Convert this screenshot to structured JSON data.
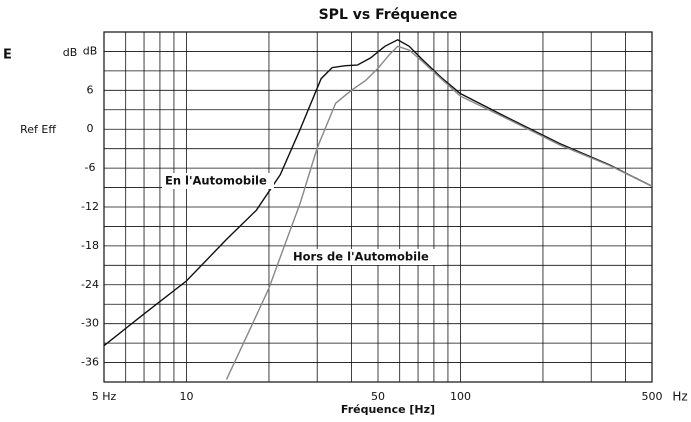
{
  "chart_data": {
    "type": "line",
    "title": "SPL vs Fréquence",
    "xlabel": "Fréquence [Hz]",
    "x_unit": "Hz",
    "y_unit": "dB",
    "side_labels": [
      "E",
      "Ref Eff"
    ],
    "xscale": "log",
    "xlim": [
      5,
      500
    ],
    "ylim": [
      -39,
      15
    ],
    "xticks": [
      {
        "value": 5,
        "label": "5 Hz"
      },
      10,
      50,
      100,
      500
    ],
    "xgrid": [
      6,
      7,
      8,
      9,
      20,
      30,
      40,
      60,
      70,
      80,
      90,
      200,
      300,
      400
    ],
    "yticks": [
      {
        "value": 12,
        "label": "dB"
      },
      6,
      0,
      -6,
      -12,
      -18,
      -24,
      -30,
      -36
    ],
    "ygrid": [
      15,
      9,
      3,
      -3,
      -9,
      -15,
      -21,
      -27,
      -33,
      -39
    ],
    "grid": true,
    "series": [
      {
        "name": "En l'Automobile",
        "color": "#111111",
        "x": [
          5,
          7,
          10,
          14,
          18,
          22,
          26,
          31,
          34,
          38,
          42,
          47,
          53,
          59,
          65,
          72,
          85,
          100,
          150,
          230,
          350,
          500
        ],
        "values": [
          -33.4,
          -28.5,
          -23.4,
          -17,
          -12.5,
          -7,
          0,
          7.8,
          9.5,
          9.8,
          9.9,
          11,
          12.8,
          13.8,
          12.8,
          10.9,
          8,
          5.5,
          1.7,
          -2.2,
          -5.5,
          -8.8
        ]
      },
      {
        "name": "Hors de l'Automobile",
        "color": "#888888",
        "x": [
          14,
          17,
          20,
          23,
          26,
          30,
          35,
          40,
          45,
          50,
          55,
          59,
          65,
          72,
          85,
          100,
          150,
          230,
          350,
          500
        ],
        "values": [
          -38.6,
          -31,
          -24.5,
          -17.5,
          -11.4,
          -2.9,
          4,
          6,
          7.5,
          9.4,
          11.5,
          12.8,
          12.2,
          10.6,
          7.8,
          5.1,
          1.5,
          -2.4,
          -5.6,
          -8.8
        ]
      }
    ]
  }
}
